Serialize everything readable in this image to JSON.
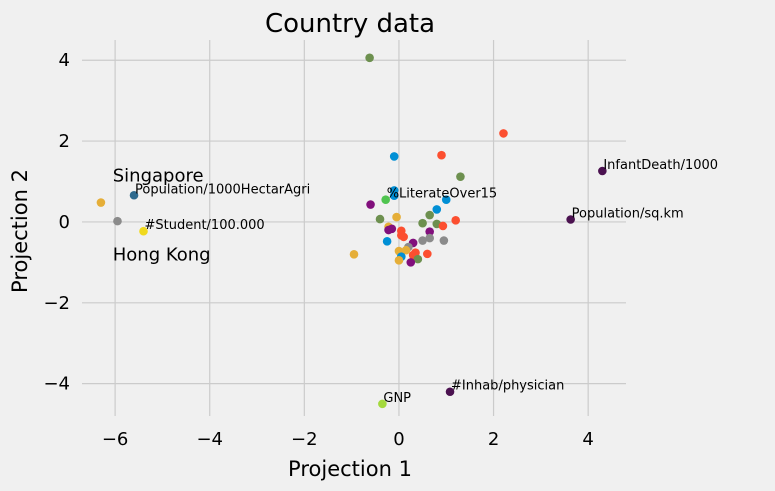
{
  "chart_data": {
    "type": "scatter",
    "title": "Country data",
    "xlabel": "Projection 1",
    "ylabel": "Projection 2",
    "xlim": [
      -6.7,
      4.8
    ],
    "ylim": [
      -4.8,
      4.5
    ],
    "xticks": [
      -6,
      -4,
      -2,
      0,
      2,
      4
    ],
    "xtick_labels": [
      "−6",
      "−4",
      "−2",
      "0",
      "2",
      "4"
    ],
    "yticks": [
      4,
      2,
      0,
      -2,
      -4
    ],
    "ytick_labels": [
      "4",
      "2",
      "0",
      "−2",
      "−4"
    ],
    "grid": true,
    "background": "#f0f0f0",
    "grid_color": "#cbcbcb",
    "palette": [
      "#008fd5",
      "#fc4f30",
      "#e5ae38",
      "#6d904f",
      "#8b8b8b",
      "#810f7c",
      "#4fc44f"
    ],
    "points": [
      {
        "x": -0.62,
        "y": 4.06,
        "c": "#6d904f"
      },
      {
        "x": 2.21,
        "y": 2.19,
        "c": "#fc4f30"
      },
      {
        "x": 0.9,
        "y": 1.65,
        "c": "#fc4f30"
      },
      {
        "x": -0.1,
        "y": 1.62,
        "c": "#008fd5"
      },
      {
        "x": 1.3,
        "y": 1.12,
        "c": "#6d904f"
      },
      {
        "x": -0.1,
        "y": 0.78,
        "c": "#008fd5"
      },
      {
        "x": -0.1,
        "y": 0.65,
        "c": "#008fd5"
      },
      {
        "x": -0.28,
        "y": 0.55,
        "c": "#4fc44f"
      },
      {
        "x": 1.0,
        "y": 0.55,
        "c": "#008fd5"
      },
      {
        "x": -0.6,
        "y": 0.43,
        "c": "#810f7c"
      },
      {
        "x": 0.8,
        "y": 0.31,
        "c": "#008fd5"
      },
      {
        "x": 0.65,
        "y": 0.17,
        "c": "#6d904f"
      },
      {
        "x": -0.05,
        "y": 0.12,
        "c": "#e5ae38"
      },
      {
        "x": -0.4,
        "y": 0.07,
        "c": "#6d904f"
      },
      {
        "x": 1.2,
        "y": 0.04,
        "c": "#fc4f30"
      },
      {
        "x": 0.5,
        "y": -0.03,
        "c": "#6d904f"
      },
      {
        "x": 0.8,
        "y": -0.05,
        "c": "#6d904f"
      },
      {
        "x": 0.93,
        "y": -0.1,
        "c": "#fc4f30"
      },
      {
        "x": -0.22,
        "y": -0.12,
        "c": "#e5ae38"
      },
      {
        "x": -0.15,
        "y": -0.17,
        "c": "#810f7c"
      },
      {
        "x": -0.22,
        "y": -0.2,
        "c": "#810f7c"
      },
      {
        "x": 0.05,
        "y": -0.22,
        "c": "#fc4f30"
      },
      {
        "x": 0.65,
        "y": -0.24,
        "c": "#810f7c"
      },
      {
        "x": 0.05,
        "y": -0.33,
        "c": "#fc4f30"
      },
      {
        "x": 0.1,
        "y": -0.37,
        "c": "#fc4f30"
      },
      {
        "x": 0.65,
        "y": -0.4,
        "c": "#8b8b8b"
      },
      {
        "x": 0.5,
        "y": -0.46,
        "c": "#8b8b8b"
      },
      {
        "x": 0.95,
        "y": -0.46,
        "c": "#8b8b8b"
      },
      {
        "x": -0.25,
        "y": -0.48,
        "c": "#008fd5"
      },
      {
        "x": 0.3,
        "y": -0.52,
        "c": "#810f7c"
      },
      {
        "x": 0.2,
        "y": -0.62,
        "c": "#8b8b8b"
      },
      {
        "x": 0.15,
        "y": -0.7,
        "c": "#e5ae38"
      },
      {
        "x": 0.0,
        "y": -0.72,
        "c": "#e5ae38"
      },
      {
        "x": 0.35,
        "y": -0.76,
        "c": "#fc4f30"
      },
      {
        "x": 0.6,
        "y": -0.79,
        "c": "#fc4f30"
      },
      {
        "x": -0.95,
        "y": -0.8,
        "c": "#e5ae38"
      },
      {
        "x": 0.3,
        "y": -0.82,
        "c": "#fc4f30"
      },
      {
        "x": 0.05,
        "y": -0.86,
        "c": "#008fd5"
      },
      {
        "x": 0.4,
        "y": -0.92,
        "c": "#6d904f"
      },
      {
        "x": 0.0,
        "y": -0.95,
        "c": "#e5ae38"
      },
      {
        "x": 0.25,
        "y": -1.0,
        "c": "#810f7c"
      },
      {
        "x": 4.3,
        "y": 1.26,
        "c": "#4b1250"
      },
      {
        "x": 3.63,
        "y": 0.06,
        "c": "#4b1250"
      },
      {
        "x": 1.08,
        "y": -4.2,
        "c": "#4b1250"
      },
      {
        "x": -0.35,
        "y": -4.5,
        "c": "#a4d93d"
      },
      {
        "x": -5.6,
        "y": 0.66,
        "c": "#2e6a8e"
      },
      {
        "x": -5.4,
        "y": -0.23,
        "c": "#f0d91e"
      },
      {
        "x": -6.3,
        "y": 0.48,
        "c": "#e5ae38"
      },
      {
        "x": -5.95,
        "y": 0.02,
        "c": "#8b8b8b"
      }
    ],
    "annotations": [
      {
        "text": "InfantDeath/1000",
        "x": 4.3,
        "y": 1.26
      },
      {
        "text": "Population/sq.km",
        "x": 3.63,
        "y": 0.06
      },
      {
        "text": "%LiterateOver15",
        "x": -0.28,
        "y": 0.55
      },
      {
        "text": "Population/1000HectarAgri",
        "x": -5.6,
        "y": 0.66
      },
      {
        "text": "#Student/100.000",
        "x": -5.4,
        "y": -0.23
      },
      {
        "text": "#Inhab/physician",
        "x": 1.08,
        "y": -4.2
      },
      {
        "text": "GNP",
        "x": -0.35,
        "y": -4.5
      }
    ],
    "labels": [
      {
        "text": "Singapore",
        "x": -6.05,
        "y": 1.0
      },
      {
        "text": "Hong Kong",
        "x": -6.05,
        "y": -0.95
      }
    ]
  }
}
